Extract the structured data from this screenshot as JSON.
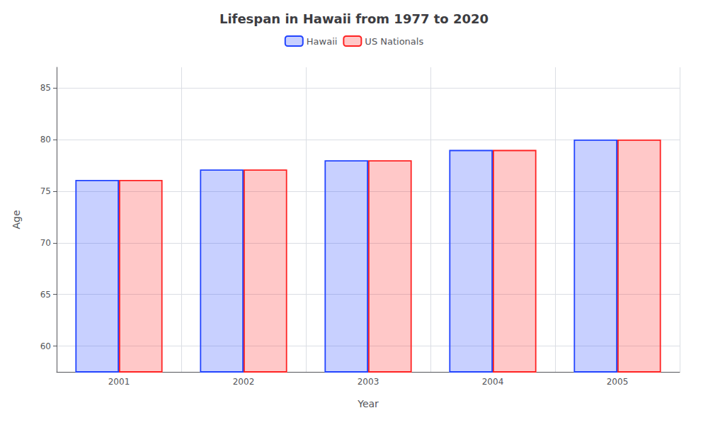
{
  "chart_data": {
    "type": "bar",
    "title": "Lifespan in Hawaii from 1977 to 2020",
    "xlabel": "Year",
    "ylabel": "Age",
    "categories": [
      "2001",
      "2002",
      "2003",
      "2004",
      "2005"
    ],
    "series": [
      {
        "name": "Hawaii",
        "color": "#2244ff",
        "values": [
          76.1,
          77.1,
          78.0,
          79.0,
          80.0
        ]
      },
      {
        "name": "US Nationals",
        "color": "#ff2222",
        "values": [
          76.1,
          77.1,
          78.0,
          79.0,
          80.0
        ]
      }
    ],
    "ylim": [
      57.5,
      87
    ],
    "yticks": [
      60,
      65,
      70,
      75,
      80,
      85
    ],
    "grid": true,
    "legend": "top"
  }
}
